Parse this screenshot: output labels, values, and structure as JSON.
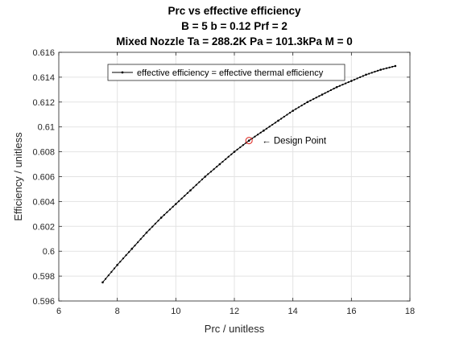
{
  "chart_data": {
    "type": "line",
    "title": [
      "Prc vs effective efficiency",
      "B = 5 b = 0.12 Prf = 2",
      "Mixed Nozzle Ta = 288.2K Pa = 101.3kPa M = 0"
    ],
    "xlabel": "Prc / unitless",
    "ylabel": "Efficiency / unitless",
    "xlim": [
      6,
      18
    ],
    "ylim": [
      0.596,
      0.616
    ],
    "xticks": [
      6,
      8,
      10,
      12,
      14,
      16,
      18
    ],
    "xtick_labels": [
      "6",
      "8",
      "10",
      "12",
      "14",
      "16",
      "18"
    ],
    "yticks": [
      0.596,
      0.598,
      0.6,
      0.602,
      0.604,
      0.606,
      0.608,
      0.61,
      0.612,
      0.614,
      0.616
    ],
    "ytick_labels": [
      "0.596",
      "0.598",
      "0.6",
      "0.602",
      "0.604",
      "0.606",
      "0.608",
      "0.61",
      "0.612",
      "0.614",
      "0.616"
    ],
    "grid": true,
    "legend_position": "top-left",
    "series": [
      {
        "name": "effective efficiency = effective thermal efficiency",
        "color": "#000000",
        "marker": "dot",
        "x": [
          7.5,
          8.0,
          8.5,
          9.0,
          9.5,
          10.0,
          10.5,
          11.0,
          11.5,
          12.0,
          12.5,
          13.0,
          13.5,
          14.0,
          14.5,
          15.0,
          15.5,
          16.0,
          16.5,
          17.0,
          17.5
        ],
        "y": [
          0.5975,
          0.5989,
          0.6002,
          0.6015,
          0.6027,
          0.6038,
          0.6049,
          0.606,
          0.607,
          0.608,
          0.6089,
          0.6097,
          0.6105,
          0.6113,
          0.612,
          0.6126,
          0.6132,
          0.6137,
          0.6142,
          0.6146,
          0.6149
        ]
      }
    ],
    "annotations": [
      {
        "text": "← Design Point",
        "x": 12.5,
        "y": 0.6089,
        "marker": "circle",
        "marker_color": "#e0302a"
      }
    ]
  }
}
